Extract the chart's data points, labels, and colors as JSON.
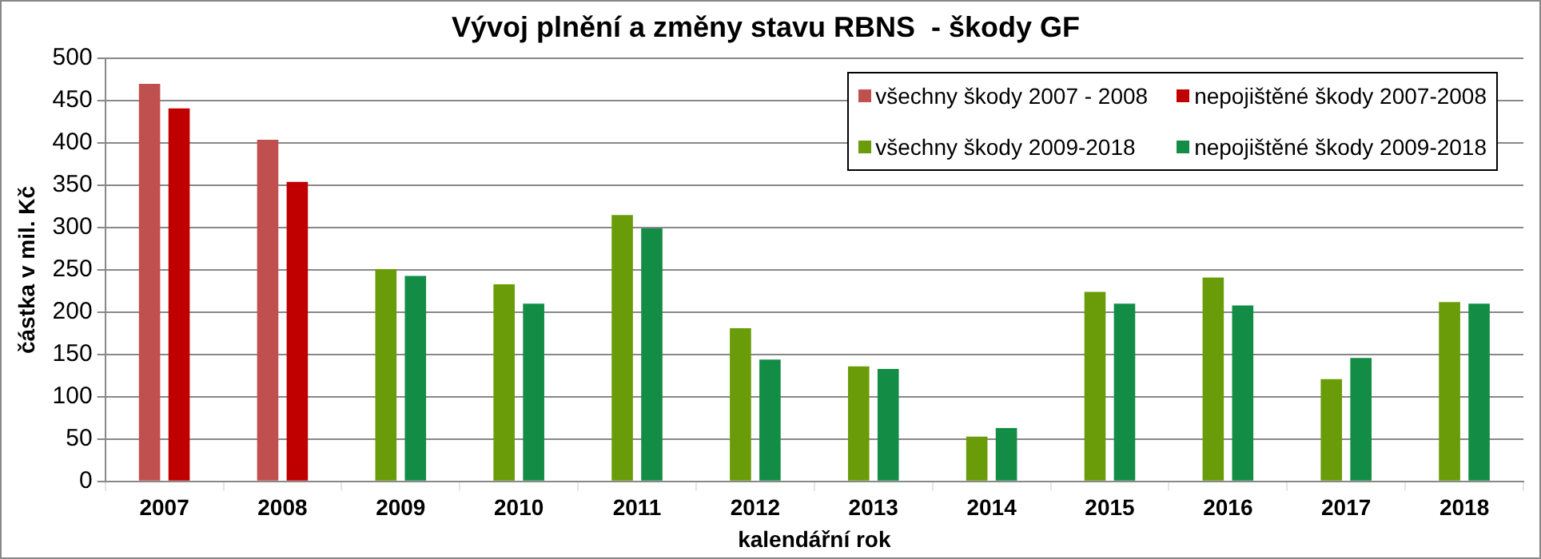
{
  "chart_data": {
    "type": "bar",
    "title": "Vývoj plnění a změny stavu RBNS  - škody GF",
    "xlabel": "kalendářní rok",
    "ylabel": "částka v mil. Kč",
    "categories": [
      "2007",
      "2008",
      "2009",
      "2010",
      "2011",
      "2012",
      "2013",
      "2014",
      "2015",
      "2016",
      "2017",
      "2018"
    ],
    "series": [
      {
        "name": "všechny škody 2007 - 2008",
        "color": "#c0504d",
        "values": [
          470,
          404,
          null,
          null,
          null,
          null,
          null,
          null,
          null,
          null,
          null,
          null
        ]
      },
      {
        "name": "nepojištěné škody 2007-2008",
        "color": "#c00000",
        "values": [
          441,
          354,
          null,
          null,
          null,
          null,
          null,
          null,
          null,
          null,
          null,
          null
        ]
      },
      {
        "name": "všechny škody 2009-2018",
        "color": "#6a9c0a",
        "values": [
          null,
          null,
          251,
          233,
          315,
          181,
          136,
          53,
          224,
          241,
          121,
          212
        ]
      },
      {
        "name": "nepojištěné škody 2009-2018",
        "color": "#138d45",
        "values": [
          null,
          null,
          243,
          210,
          299,
          144,
          133,
          63,
          210,
          208,
          146,
          210
        ]
      }
    ],
    "ylim": [
      0,
      500
    ],
    "yticks": [
      0,
      50,
      100,
      150,
      200,
      250,
      300,
      350,
      400,
      450,
      500
    ],
    "grid": "y",
    "legend": "top right"
  }
}
